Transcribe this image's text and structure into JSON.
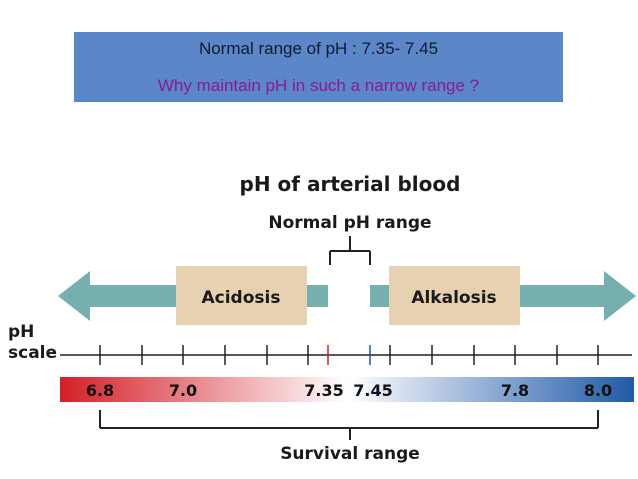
{
  "banner": {
    "line1": "Normal range of pH : 7.35- 7.45",
    "line2": "Why maintain pH in such a narrow range ?",
    "bg_color": "#5b86c8",
    "question_color": "#8a1a9a"
  },
  "diagram": {
    "title": "pH of arterial blood",
    "normal_range_label": "Normal pH range",
    "acidosis_label": "Acidosis",
    "alkalosis_label": "Alkalosis",
    "scale_label_line1": "pH",
    "scale_label_line2": "scale",
    "survival_label": "Survival range",
    "tick_labels": [
      "6.8",
      "7.0",
      "7.35",
      "7.45",
      "7.8",
      "8.0"
    ],
    "colors": {
      "arrow": "#76b0ae",
      "box": "#e6d2b0",
      "acid_end": "#d41f26",
      "alkali_end": "#1f5aa8",
      "tick_acid": "#cc2222",
      "tick_alkali": "#2255aa"
    }
  }
}
